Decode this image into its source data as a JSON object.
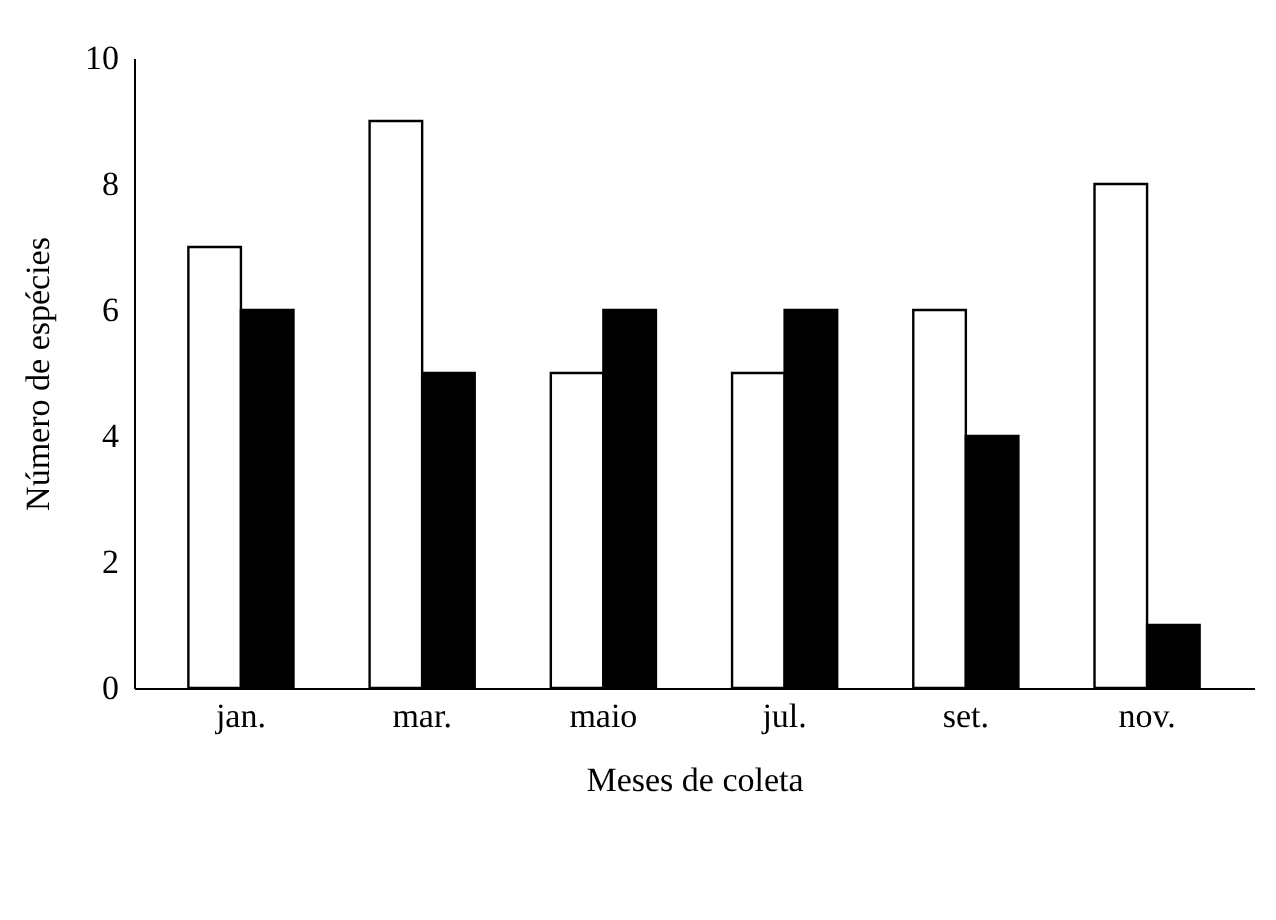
{
  "chart_data": {
    "type": "bar",
    "xlabel": "Meses de coleta",
    "ylabel": "Número de espécies",
    "categories": [
      "jan.",
      "mar.",
      "maio",
      "jul.",
      "set.",
      "nov."
    ],
    "series": [
      {
        "color": "#ffffff",
        "values": [
          7,
          9,
          5,
          5,
          6,
          8
        ]
      },
      {
        "color": "#000000",
        "values": [
          6,
          5,
          6,
          6,
          4,
          1
        ]
      }
    ],
    "ylim": [
      0,
      10
    ],
    "yticks": [
      0,
      2,
      4,
      6,
      8,
      10
    ]
  }
}
